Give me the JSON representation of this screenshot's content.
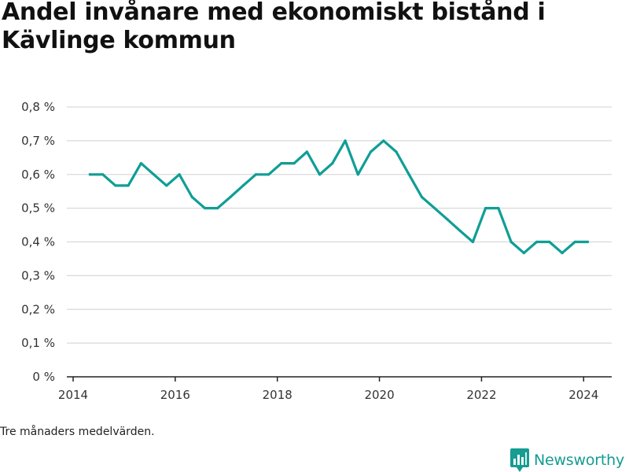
{
  "title": "Andel invånare med ekonomiskt bistånd i Kävlinge kommun",
  "note": "Tre månaders medelvärden.",
  "brand": {
    "name": "Newsworthy",
    "icon": "newsworthy-logo-icon"
  },
  "colors": {
    "line": "#0f9e96",
    "brand": "#169c91",
    "grid": "#d9d9d9",
    "axis": "#222222"
  },
  "chart_data": {
    "type": "line",
    "title": "",
    "xlabel": "",
    "ylabel": "",
    "grid": true,
    "xlim": [
      2014.0,
      2024.55
    ],
    "ylim": [
      0,
      0.8
    ],
    "xticks": [
      2014,
      2016,
      2018,
      2020,
      2022,
      2024
    ],
    "xtick_labels": [
      "2014",
      "2016",
      "2018",
      "2020",
      "2022",
      "2024"
    ],
    "yticks": [
      0,
      0.1,
      0.2,
      0.3,
      0.4,
      0.5,
      0.6,
      0.7,
      0.8
    ],
    "ytick_labels": [
      "0 %",
      "0,1 %",
      "0,2 %",
      "0,3 %",
      "0,4 %",
      "0,5 %",
      "0,6 %",
      "0,7 %",
      "0,8 %"
    ],
    "series": [
      {
        "x": [
          2014.33,
          2014.58,
          2014.83,
          2015.08,
          2015.33,
          2015.58,
          2015.83,
          2016.08,
          2016.33,
          2016.58,
          2016.83,
          2017.08,
          2017.33,
          2017.58,
          2017.83,
          2018.08,
          2018.33,
          2018.58,
          2018.83,
          2019.08,
          2019.33,
          2019.58,
          2019.83,
          2020.08,
          2020.33,
          2020.58,
          2020.83,
          2021.08,
          2021.33,
          2021.58,
          2021.83,
          2022.08,
          2022.33,
          2022.58,
          2022.83,
          2023.08,
          2023.33,
          2023.58,
          2023.83,
          2024.08
        ],
        "values": [
          0.6,
          0.6,
          0.567,
          0.567,
          0.633,
          0.6,
          0.567,
          0.6,
          0.533,
          0.5,
          0.5,
          0.533,
          0.567,
          0.6,
          0.6,
          0.633,
          0.633,
          0.667,
          0.6,
          0.633,
          0.7,
          0.6,
          0.667,
          0.7,
          0.667,
          0.6,
          0.533,
          0.5,
          0.467,
          0.433,
          0.4,
          0.5,
          0.5,
          0.4,
          0.367,
          0.4,
          0.4,
          0.367,
          0.4,
          0.4
        ]
      }
    ]
  }
}
